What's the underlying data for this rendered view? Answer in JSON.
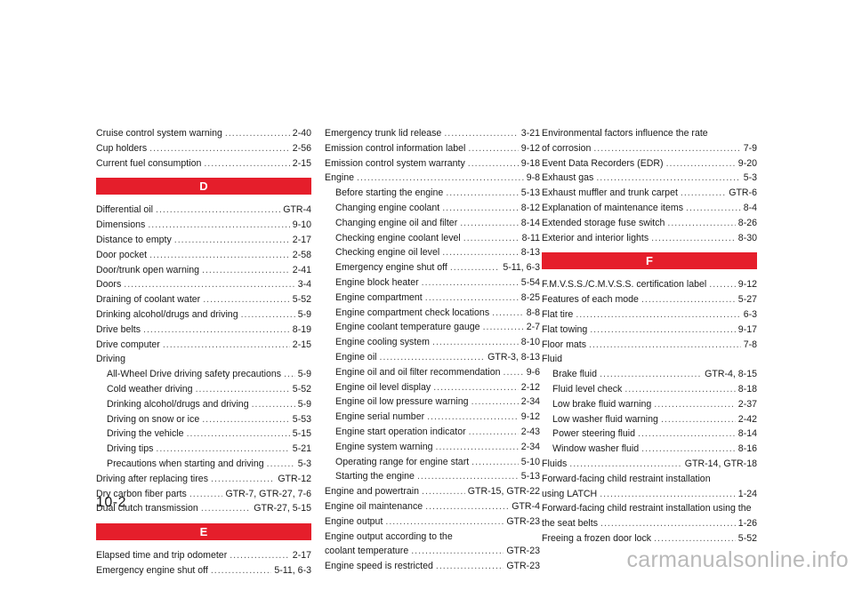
{
  "col1": [
    {
      "text": "Cruise control system warning",
      "page": "2-40"
    },
    {
      "text": "Cup holders",
      "page": "2-56"
    },
    {
      "text": "Current fuel consumption",
      "page": "2-15"
    },
    {
      "header": "D"
    },
    {
      "text": "Differential oil",
      "page": "GTR-4"
    },
    {
      "text": "Dimensions",
      "page": "9-10"
    },
    {
      "text": "Distance to empty",
      "page": "2-17"
    },
    {
      "text": "Door pocket",
      "page": "2-58"
    },
    {
      "text": "Door/trunk open warning",
      "page": "2-41"
    },
    {
      "text": "Doors",
      "page": "3-4"
    },
    {
      "text": "Draining of coolant water",
      "page": "5-52"
    },
    {
      "text": "Drinking alcohol/drugs and driving",
      "page": "5-9"
    },
    {
      "text": "Drive belts",
      "page": "8-19"
    },
    {
      "text": "Drive computer",
      "page": "2-15"
    },
    {
      "text": "Driving"
    },
    {
      "text": "All-Wheel Drive driving safety precautions",
      "page": "5-9",
      "indent": true
    },
    {
      "text": "Cold weather driving",
      "page": "5-52",
      "indent": true
    },
    {
      "text": "Drinking alcohol/drugs and driving",
      "page": "5-9",
      "indent": true
    },
    {
      "text": "Driving on snow or ice",
      "page": "5-53",
      "indent": true
    },
    {
      "text": "Driving the vehicle",
      "page": "5-15",
      "indent": true
    },
    {
      "text": "Driving tips",
      "page": "5-21",
      "indent": true
    },
    {
      "text": "Precautions when starting and driving",
      "page": "5-3",
      "indent": true
    },
    {
      "text": "Driving after replacing tires",
      "page": "GTR-12"
    },
    {
      "text": "Dry carbon fiber parts",
      "page": "GTR-7, GTR-27, 7-6"
    },
    {
      "text": "Dual clutch transmission",
      "page": "GTR-27, 5-15"
    },
    {
      "header": "E"
    },
    {
      "text": "Elapsed time and trip odometer",
      "page": "2-17"
    },
    {
      "text": "Emergency engine shut off",
      "page": "5-11, 6-3"
    }
  ],
  "col2": [
    {
      "text": "Emergency trunk lid release",
      "page": "3-21"
    },
    {
      "text": "Emission control information label",
      "page": "9-12"
    },
    {
      "text": "Emission control system warranty",
      "page": "9-18"
    },
    {
      "text": "Engine",
      "page": "9-8"
    },
    {
      "text": "Before starting the engine",
      "page": "5-13",
      "indent": true
    },
    {
      "text": "Changing engine coolant",
      "page": "8-12",
      "indent": true
    },
    {
      "text": "Changing engine oil and filter",
      "page": "8-14",
      "indent": true
    },
    {
      "text": "Checking engine coolant level",
      "page": "8-11",
      "indent": true
    },
    {
      "text": "Checking engine oil level",
      "page": "8-13",
      "indent": true
    },
    {
      "text": "Emergency engine shut off",
      "page": "5-11, 6-3",
      "indent": true
    },
    {
      "text": "Engine block heater",
      "page": "5-54",
      "indent": true
    },
    {
      "text": "Engine compartment",
      "page": "8-25",
      "indent": true
    },
    {
      "text": "Engine compartment check locations",
      "page": "8-8",
      "indent": true
    },
    {
      "text": "Engine coolant temperature gauge",
      "page": "2-7",
      "indent": true
    },
    {
      "text": "Engine cooling system",
      "page": "8-10",
      "indent": true
    },
    {
      "text": "Engine oil",
      "page": "GTR-3, 8-13",
      "indent": true
    },
    {
      "text": "Engine oil and oil filter recommendation",
      "page": "9-6",
      "indent": true
    },
    {
      "text": "Engine oil level display",
      "page": "2-12",
      "indent": true
    },
    {
      "text": "Engine oil low pressure warning",
      "page": "2-34",
      "indent": true
    },
    {
      "text": "Engine serial number",
      "page": "9-12",
      "indent": true
    },
    {
      "text": "Engine start operation indicator",
      "page": "2-43",
      "indent": true
    },
    {
      "text": "Engine system warning",
      "page": "2-34",
      "indent": true
    },
    {
      "text": "Operating range for engine start",
      "page": "5-10",
      "indent": true
    },
    {
      "text": "Starting the engine",
      "page": "5-13",
      "indent": true
    },
    {
      "text": "Engine and powertrain",
      "page": "GTR-15, GTR-22"
    },
    {
      "text": "Engine oil maintenance",
      "page": "GTR-4"
    },
    {
      "text": "Engine output",
      "page": "GTR-23"
    },
    {
      "text": "Engine output according to the"
    },
    {
      "text": "coolant temperature",
      "page": "GTR-23"
    },
    {
      "text": "Engine speed is restricted",
      "page": "GTR-23"
    }
  ],
  "col3": [
    {
      "text": "Environmental factors influence the rate"
    },
    {
      "text": "of corrosion",
      "page": "7-9"
    },
    {
      "text": "Event Data Recorders (EDR)",
      "page": "9-20"
    },
    {
      "text": "Exhaust gas",
      "page": "5-3"
    },
    {
      "text": "Exhaust muffler and trunk carpet",
      "page": "GTR-6"
    },
    {
      "text": "Explanation of maintenance items",
      "page": "8-4"
    },
    {
      "text": "Extended storage fuse switch",
      "page": "8-26"
    },
    {
      "text": "Exterior and interior lights",
      "page": "8-30"
    },
    {
      "header": "F"
    },
    {
      "text": "F.M.V.S.S./C.M.V.S.S. certification label",
      "page": "9-12"
    },
    {
      "text": "Features of each mode",
      "page": "5-27"
    },
    {
      "text": "Flat tire",
      "page": "6-3"
    },
    {
      "text": "Flat towing",
      "page": "9-17"
    },
    {
      "text": "Floor mats",
      "page": "7-8"
    },
    {
      "text": "Fluid"
    },
    {
      "text": "Brake fluid",
      "page": "GTR-4, 8-15",
      "indent": true
    },
    {
      "text": "Fluid level check",
      "page": "8-18",
      "indent": true
    },
    {
      "text": "Low brake fluid warning",
      "page": "2-37",
      "indent": true
    },
    {
      "text": "Low washer fluid warning",
      "page": "2-42",
      "indent": true
    },
    {
      "text": "Power steering fluid",
      "page": "8-14",
      "indent": true
    },
    {
      "text": "Window washer fluid",
      "page": "8-16",
      "indent": true
    },
    {
      "text": "Fluids",
      "page": "GTR-14, GTR-18"
    },
    {
      "text": "Forward-facing child restraint installation"
    },
    {
      "text": "using LATCH",
      "page": "1-24"
    },
    {
      "text": "Forward-facing child restraint installation using the"
    },
    {
      "text": "the seat belts",
      "page": "1-26"
    },
    {
      "text": "Freeing a frozen door lock",
      "page": "5-52"
    }
  ],
  "folio": "10-2",
  "watermark": "carmanualsonline.info",
  "colors": {
    "header_bg": "#e51e2b",
    "watermark": "#b9b9b9"
  }
}
